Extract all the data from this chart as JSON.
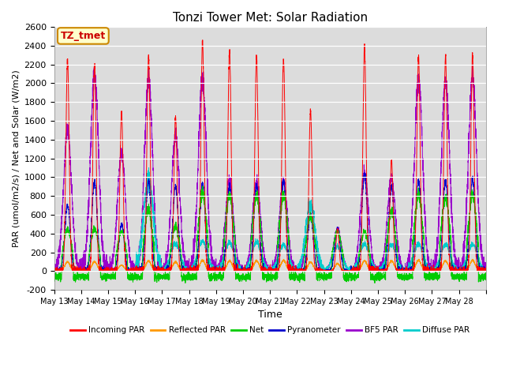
{
  "title": "Tonzi Tower Met: Solar Radiation",
  "xlabel": "Time",
  "ylabel": "PAR (umol/m2/s) / Net and Solar (W/m2)",
  "ylim": [
    -200,
    2600
  ],
  "background_color": "#dcdcdc",
  "plot_bg_color": "#dcdcdc",
  "annotation_text": "TZ_tmet",
  "annotation_bg": "#ffffcc",
  "annotation_border": "#cc8800",
  "x_tick_labels": [
    "May 1",
    "May 14",
    "May 15",
    "May 16",
    "May 1",
    "May 18",
    "May 1",
    "May 20",
    "May 2",
    "May 2",
    "May 2",
    "May 2",
    "May 2",
    "May 2",
    "May 2",
    "May 28"
  ],
  "series": {
    "incoming_par": {
      "label": "Incoming PAR",
      "color": "#ff0000"
    },
    "reflected_par": {
      "label": "Reflected PAR",
      "color": "#ff9900"
    },
    "net": {
      "label": "Net",
      "color": "#00cc00"
    },
    "pyranometer": {
      "label": "Pyranometer",
      "color": "#0000cc"
    },
    "bf5_par": {
      "label": "BF5 PAR",
      "color": "#9900cc"
    },
    "diffuse_par": {
      "label": "Diffuse PAR",
      "color": "#00cccc"
    }
  },
  "yticks": [
    -200,
    0,
    200,
    400,
    600,
    800,
    1000,
    1200,
    1400,
    1600,
    1800,
    2000,
    2200,
    2400,
    2600
  ],
  "n_days": 16,
  "pts_per_day": 288,
  "day_peaks_incoming": [
    2250,
    2200,
    1700,
    2280,
    1640,
    2450,
    2350,
    2280,
    2260,
    1700,
    450,
    2370,
    1180,
    2290,
    2290,
    2300
  ],
  "day_peaks_bf5": [
    1500,
    2100,
    1250,
    2050,
    1450,
    2050,
    960,
    950,
    950,
    600,
    450,
    1050,
    1000,
    2050,
    2050,
    2050
  ],
  "day_peaks_pyranometer": [
    700,
    950,
    500,
    960,
    900,
    930,
    910,
    910,
    960,
    600,
    450,
    1030,
    900,
    960,
    960,
    980
  ],
  "day_peaks_net": [
    450,
    450,
    420,
    660,
    480,
    820,
    800,
    800,
    800,
    580,
    420,
    420,
    640,
    800,
    790,
    800
  ],
  "day_peaks_reflected": [
    100,
    100,
    65,
    110,
    100,
    115,
    110,
    110,
    115,
    95,
    80,
    110,
    110,
    115,
    110,
    115
  ],
  "day_peaks_diffuse": [
    10,
    10,
    10,
    980,
    290,
    320,
    300,
    305,
    280,
    700,
    260,
    290,
    280,
    290,
    285,
    285
  ]
}
